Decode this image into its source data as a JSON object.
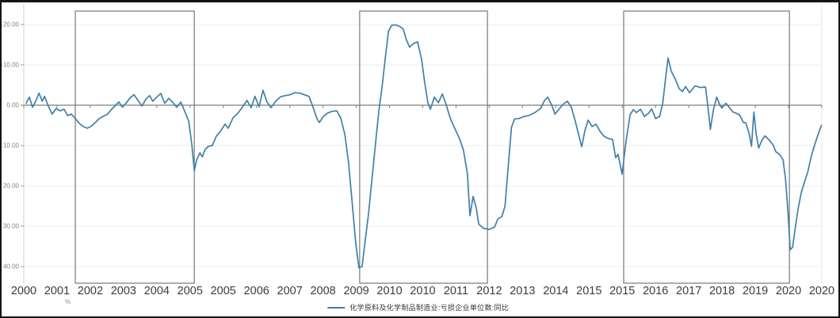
{
  "legend": {
    "series_label": "化学原料及化学制品制造业:亏损企业单位数:同比"
  },
  "axes": {
    "y_unit_label": "%",
    "y_axis_inverted": true,
    "y_ticks": [
      {
        "label": "-20.00",
        "value": -20
      },
      {
        "label": "-10.00",
        "value": -10
      },
      {
        "label": "0.00",
        "value": 0
      },
      {
        "label": "10.00",
        "value": 10
      },
      {
        "label": "20.00",
        "value": 20
      },
      {
        "label": "30.00",
        "value": 30
      },
      {
        "label": "40.00",
        "value": 40
      }
    ],
    "x_tick_labels": [
      "2000",
      "2001",
      "2002",
      "2003",
      "2004",
      "2005",
      "2005",
      "2006",
      "2007",
      "2008",
      "2009",
      "2010",
      "2010",
      "2011",
      "2012",
      "2013",
      "2014",
      "2015",
      "2015",
      "2016",
      "2017",
      "2018",
      "2019",
      "2020",
      "2020"
    ]
  },
  "colors": {
    "line": "#4080a8",
    "zero_line": "#7d7d7d",
    "box_border": "#787878",
    "gridline": "#ededed",
    "axis_line": "#cfcfcf",
    "plot_right_edge": "#e6e6e6",
    "y_label": "#828282",
    "x_label": "#3c3c3c",
    "frame_border": "#141414"
  },
  "chart_data": {
    "type": "line",
    "title": "",
    "ylabel": "%",
    "ylim": [
      -20,
      40
    ],
    "y_inverted": true,
    "xlim_years": [
      2000.9,
      2020.95
    ],
    "grid": "horizontal",
    "legend_position": "bottom-center",
    "highlight_boxes": [
      {
        "from": 2002.19,
        "to": 2005.17
      },
      {
        "from": 2009.31,
        "to": 2012.51
      },
      {
        "from": 2015.92,
        "to": 2020.07
      }
    ],
    "series": [
      {
        "name": "化学原料及化学制品制造业:亏损企业单位数:同比",
        "color": "#4080a8",
        "points": [
          [
            2000.96,
            -0.5
          ],
          [
            2001.04,
            -2
          ],
          [
            2001.12,
            0.5
          ],
          [
            2001.2,
            -1
          ],
          [
            2001.28,
            -3
          ],
          [
            2001.36,
            -1
          ],
          [
            2001.42,
            -2.2
          ],
          [
            2001.52,
            0.3
          ],
          [
            2001.61,
            2.2
          ],
          [
            2001.71,
            0.8
          ],
          [
            2001.81,
            1.4
          ],
          [
            2001.91,
            1
          ],
          [
            2002,
            2.6
          ],
          [
            2002.09,
            2.2
          ],
          [
            2002.19,
            3.3
          ],
          [
            2002.29,
            4.5
          ],
          [
            2002.39,
            5.3
          ],
          [
            2002.49,
            5.7
          ],
          [
            2002.59,
            5.2
          ],
          [
            2002.69,
            4.3
          ],
          [
            2002.78,
            3.4
          ],
          [
            2002.88,
            2.8
          ],
          [
            2003,
            2.2
          ],
          [
            2003.1,
            1
          ],
          [
            2003.2,
            0
          ],
          [
            2003.28,
            -0.8
          ],
          [
            2003.36,
            0.4
          ],
          [
            2003.46,
            -0.5
          ],
          [
            2003.56,
            -1.8
          ],
          [
            2003.66,
            -2.6
          ],
          [
            2003.76,
            -1.2
          ],
          [
            2003.86,
            0.2
          ],
          [
            2003.96,
            -1.5
          ],
          [
            2004.05,
            -2.4
          ],
          [
            2004.13,
            -1
          ],
          [
            2004.23,
            -2
          ],
          [
            2004.33,
            -2.9
          ],
          [
            2004.43,
            -0.5
          ],
          [
            2004.53,
            -1.7
          ],
          [
            2004.63,
            -0.7
          ],
          [
            2004.73,
            0.5
          ],
          [
            2004.83,
            -0.8
          ],
          [
            2004.93,
            1.5
          ],
          [
            2005.03,
            4
          ],
          [
            2005.11,
            10
          ],
          [
            2005.17,
            16.3
          ],
          [
            2005.23,
            13.5
          ],
          [
            2005.31,
            11.8
          ],
          [
            2005.37,
            12.8
          ],
          [
            2005.44,
            11
          ],
          [
            2005.52,
            10.2
          ],
          [
            2005.62,
            10
          ],
          [
            2005.72,
            7.7
          ],
          [
            2005.82,
            6.5
          ],
          [
            2005.94,
            4.7
          ],
          [
            2006.02,
            5.7
          ],
          [
            2006.14,
            3.1
          ],
          [
            2006.26,
            2
          ],
          [
            2006.38,
            0.4
          ],
          [
            2006.49,
            -1.2
          ],
          [
            2006.59,
            0.6
          ],
          [
            2006.69,
            -2.2
          ],
          [
            2006.79,
            0.4
          ],
          [
            2006.89,
            -3.7
          ],
          [
            2006.99,
            -0.8
          ],
          [
            2007.09,
            0.6
          ],
          [
            2007.21,
            -1
          ],
          [
            2007.33,
            -2.1
          ],
          [
            2007.45,
            -2.4
          ],
          [
            2007.57,
            -2.6
          ],
          [
            2007.69,
            -3.1
          ],
          [
            2007.81,
            -3
          ],
          [
            2007.92,
            -2.6
          ],
          [
            2008.04,
            -2.2
          ],
          [
            2008.14,
            0.4
          ],
          [
            2008.24,
            3.3
          ],
          [
            2008.3,
            4.3
          ],
          [
            2008.4,
            2.8
          ],
          [
            2008.5,
            2
          ],
          [
            2008.62,
            1.5
          ],
          [
            2008.74,
            1.4
          ],
          [
            2008.84,
            3.3
          ],
          [
            2008.94,
            7.3
          ],
          [
            2009.03,
            14.2
          ],
          [
            2009.13,
            25
          ],
          [
            2009.21,
            34
          ],
          [
            2009.29,
            40.3
          ],
          [
            2009.37,
            40
          ],
          [
            2009.45,
            33.5
          ],
          [
            2009.53,
            27
          ],
          [
            2009.63,
            17.1
          ],
          [
            2009.73,
            7.3
          ],
          [
            2009.79,
            1.4
          ],
          [
            2009.87,
            -4.5
          ],
          [
            2009.95,
            -11.5
          ],
          [
            2010.03,
            -18.3
          ],
          [
            2010.11,
            -19.8
          ],
          [
            2010.22,
            -19.9
          ],
          [
            2010.32,
            -19.5
          ],
          [
            2010.4,
            -18.9
          ],
          [
            2010.48,
            -16.2
          ],
          [
            2010.56,
            -14.4
          ],
          [
            2010.66,
            -15.3
          ],
          [
            2010.76,
            -15.7
          ],
          [
            2010.86,
            -11.4
          ],
          [
            2010.94,
            -5.5
          ],
          [
            2011.02,
            -0.6
          ],
          [
            2011.08,
            1
          ],
          [
            2011.18,
            -2
          ],
          [
            2011.28,
            -0.6
          ],
          [
            2011.38,
            -2.8
          ],
          [
            2011.48,
            0
          ],
          [
            2011.58,
            3.3
          ],
          [
            2011.67,
            5.3
          ],
          [
            2011.81,
            8.3
          ],
          [
            2011.91,
            11.2
          ],
          [
            2012.01,
            17.1
          ],
          [
            2012.07,
            27.4
          ],
          [
            2012.15,
            22.6
          ],
          [
            2012.23,
            25.5
          ],
          [
            2012.29,
            29.5
          ],
          [
            2012.41,
            30.5
          ],
          [
            2012.55,
            30.8
          ],
          [
            2012.69,
            30.2
          ],
          [
            2012.77,
            28.2
          ],
          [
            2012.87,
            27.6
          ],
          [
            2012.95,
            25
          ],
          [
            2013.03,
            15
          ],
          [
            2013.11,
            5.5
          ],
          [
            2013.19,
            3.4
          ],
          [
            2013.3,
            3.3
          ],
          [
            2013.42,
            2.8
          ],
          [
            2013.56,
            2.5
          ],
          [
            2013.7,
            1.8
          ],
          [
            2013.84,
            0.8
          ],
          [
            2013.94,
            -1.2
          ],
          [
            2014.02,
            -2
          ],
          [
            2014.12,
            0
          ],
          [
            2014.2,
            2.2
          ],
          [
            2014.3,
            1
          ],
          [
            2014.4,
            -0.2
          ],
          [
            2014.51,
            -1
          ],
          [
            2014.61,
            0.5
          ],
          [
            2014.71,
            4
          ],
          [
            2014.81,
            8
          ],
          [
            2014.87,
            10.3
          ],
          [
            2014.95,
            6.3
          ],
          [
            2015.03,
            3.7
          ],
          [
            2015.13,
            5.3
          ],
          [
            2015.23,
            4.7
          ],
          [
            2015.33,
            6.5
          ],
          [
            2015.43,
            7.7
          ],
          [
            2015.54,
            8.3
          ],
          [
            2015.64,
            8.5
          ],
          [
            2015.72,
            13
          ],
          [
            2015.78,
            12.2
          ],
          [
            2015.88,
            17.1
          ],
          [
            2015.98,
            8.9
          ],
          [
            2016.08,
            2.4
          ],
          [
            2016.16,
            1.1
          ],
          [
            2016.24,
            1.8
          ],
          [
            2016.34,
            1
          ],
          [
            2016.44,
            2.8
          ],
          [
            2016.54,
            2
          ],
          [
            2016.62,
            0.9
          ],
          [
            2016.72,
            3.3
          ],
          [
            2016.82,
            2.8
          ],
          [
            2016.9,
            -0.6
          ],
          [
            2016.98,
            -7.5
          ],
          [
            2017.03,
            -11.7
          ],
          [
            2017.11,
            -8.5
          ],
          [
            2017.21,
            -6.5
          ],
          [
            2017.31,
            -4.1
          ],
          [
            2017.39,
            -3.4
          ],
          [
            2017.47,
            -4.6
          ],
          [
            2017.57,
            -3.1
          ],
          [
            2017.71,
            -4.8
          ],
          [
            2017.83,
            -4.4
          ],
          [
            2017.97,
            -4.5
          ],
          [
            2018.03,
            0.5
          ],
          [
            2018.09,
            6
          ],
          [
            2018.17,
            1
          ],
          [
            2018.25,
            -2
          ],
          [
            2018.33,
            0
          ],
          [
            2018.38,
            0.7
          ],
          [
            2018.48,
            -0.5
          ],
          [
            2018.56,
            0.5
          ],
          [
            2018.66,
            1.7
          ],
          [
            2018.74,
            2
          ],
          [
            2018.82,
            2.4
          ],
          [
            2018.92,
            4.3
          ],
          [
            2018.98,
            4.4
          ],
          [
            2019.06,
            7
          ],
          [
            2019.12,
            10.2
          ],
          [
            2019.18,
            1.7
          ],
          [
            2019.24,
            7.3
          ],
          [
            2019.3,
            10.6
          ],
          [
            2019.38,
            8.7
          ],
          [
            2019.46,
            7.6
          ],
          [
            2019.56,
            8.6
          ],
          [
            2019.66,
            9.8
          ],
          [
            2019.73,
            11.5
          ],
          [
            2019.83,
            12.3
          ],
          [
            2019.91,
            13.5
          ],
          [
            2019.97,
            18
          ],
          [
            2020.03,
            26
          ],
          [
            2020.09,
            35.8
          ],
          [
            2020.15,
            35.2
          ],
          [
            2020.21,
            30.9
          ],
          [
            2020.29,
            25.5
          ],
          [
            2020.37,
            21.5
          ],
          [
            2020.45,
            19
          ],
          [
            2020.53,
            16.5
          ],
          [
            2020.61,
            13
          ],
          [
            2020.69,
            10.2
          ],
          [
            2020.77,
            7.8
          ],
          [
            2020.87,
            5
          ]
        ]
      }
    ]
  }
}
